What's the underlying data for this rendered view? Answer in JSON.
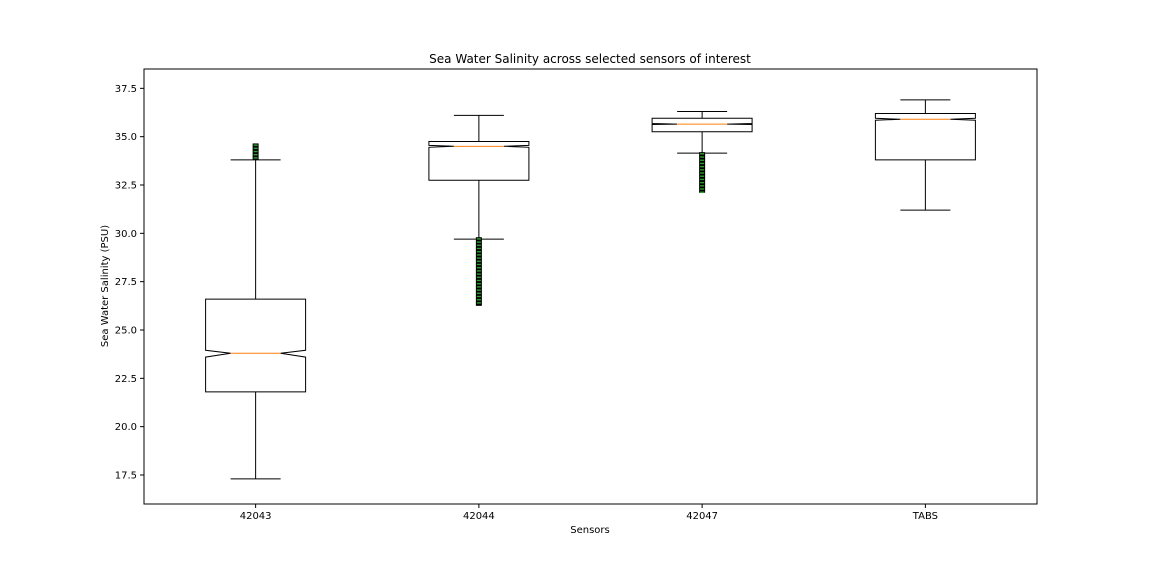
{
  "chart_data": {
    "type": "boxplot",
    "title": "Sea Water Salinity across selected sensors of interest",
    "xlabel": "Sensors",
    "ylabel": "Sea Water Salinity (PSU)",
    "ylim": [
      16.0,
      38.5
    ],
    "yticks": [
      "17.5",
      "20.0",
      "22.5",
      "25.0",
      "27.5",
      "30.0",
      "32.5",
      "35.0",
      "37.5"
    ],
    "categories": [
      "42043",
      "42044",
      "42047",
      "TABS"
    ],
    "notched": true,
    "grid": false,
    "boxes": [
      {
        "name": "42043",
        "whisker_low": 17.3,
        "q1": 21.8,
        "median": 23.8,
        "q3": 26.6,
        "notch_low": 23.6,
        "notch_high": 23.95,
        "whisker_high": 33.8,
        "outliers_range": [
          33.8,
          34.65
        ]
      },
      {
        "name": "42044",
        "whisker_low": 29.7,
        "q1": 32.75,
        "median": 34.5,
        "q3": 34.75,
        "notch_low": 34.45,
        "notch_high": 34.55,
        "whisker_high": 36.1,
        "outliers_range": [
          26.25,
          29.8
        ]
      },
      {
        "name": "42047",
        "whisker_low": 34.15,
        "q1": 35.25,
        "median": 35.65,
        "q3": 35.95,
        "notch_low": 35.63,
        "notch_high": 35.68,
        "whisker_high": 36.3,
        "outliers_range": [
          32.1,
          34.2
        ]
      },
      {
        "name": "TABS",
        "whisker_low": 31.2,
        "q1": 33.8,
        "median": 35.9,
        "q3": 36.2,
        "notch_low": 35.85,
        "notch_high": 35.95,
        "whisker_high": 36.9,
        "outliers_range": []
      }
    ],
    "colors": {
      "box": "#000000",
      "median": "#ff7f0e",
      "outlier": "#2ca02c"
    }
  }
}
